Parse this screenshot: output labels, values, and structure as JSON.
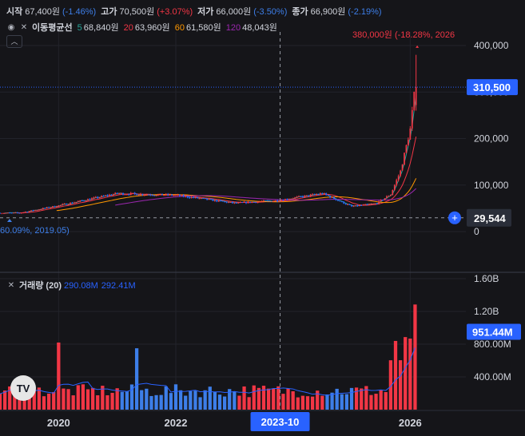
{
  "ohlc": {
    "open_label": "시작",
    "open_value": "67,400원",
    "open_change": "(-1.46%)",
    "high_label": "고가",
    "high_value": "70,500원",
    "high_change": "(+3.07%)",
    "low_label": "저가",
    "low_value": "66,000원",
    "low_change": "(-3.50%)",
    "close_label": "종가",
    "close_value": "66,900원",
    "close_change": "(-2.19%)"
  },
  "ma_legend": {
    "title": "이동평균선",
    "items": [
      {
        "length": "5",
        "value": "68,840원",
        "color": "#26a69a"
      },
      {
        "length": "20",
        "value": "63,960원",
        "color": "#f23645"
      },
      {
        "length": "60",
        "value": "61,580원",
        "color": "#ff9800"
      },
      {
        "length": "120",
        "value": "48,043원",
        "color": "#9c27b0"
      }
    ]
  },
  "volume_legend": {
    "title": "거래량 (20)",
    "value1": "290.08M",
    "value2": "292.41M"
  },
  "annotations": {
    "high_marker": "380,000원 (-18.28%, 2026",
    "low_marker": "60.09%, 2019.05)"
  },
  "price_axis": {
    "ticks": [
      "400,000",
      "300,000",
      "200,000",
      "100,000",
      "0"
    ],
    "current_price_label": "310,500",
    "crosshair_label": "29,544"
  },
  "volume_axis": {
    "ticks": [
      "1.60B",
      "1.20B",
      "800.00M",
      "400.00M"
    ],
    "current_volume_label": "951.44M"
  },
  "time_axis": {
    "ticks": [
      "2020",
      "2022",
      "2026"
    ],
    "crosshair_label": "2023-10"
  },
  "colors": {
    "background": "#151519",
    "up": "#f23645",
    "down": "#2962ff",
    "grid": "#22232a",
    "text": "#d1d4dc",
    "accent": "#2962ff"
  },
  "chart_data": {
    "type": "candlestick",
    "x_range": [
      "2019",
      "2026"
    ],
    "price_range": [
      0,
      400000
    ],
    "volume_range": [
      0,
      1600000000
    ],
    "candles_approx": [
      {
        "date": "2019.05",
        "close": 40000
      },
      {
        "date": "2020.01",
        "close": 56000
      },
      {
        "date": "2021.01",
        "close": 82000
      },
      {
        "date": "2022.01",
        "close": 78000
      },
      {
        "date": "2023.01",
        "close": 61000
      },
      {
        "date": "2023.10",
        "close": 67000
      },
      {
        "date": "2024.07",
        "close": 82000
      },
      {
        "date": "2025.01",
        "close": 54000
      },
      {
        "date": "2025.06",
        "close": 60000
      },
      {
        "date": "2025.09",
        "close": 80000
      },
      {
        "date": "2025.11",
        "close": 130000
      },
      {
        "date": "2026.01",
        "close": 220000
      },
      {
        "date": "2026.02",
        "close": 310500,
        "high": 380000
      }
    ],
    "volume_series_name": "거래량"
  }
}
